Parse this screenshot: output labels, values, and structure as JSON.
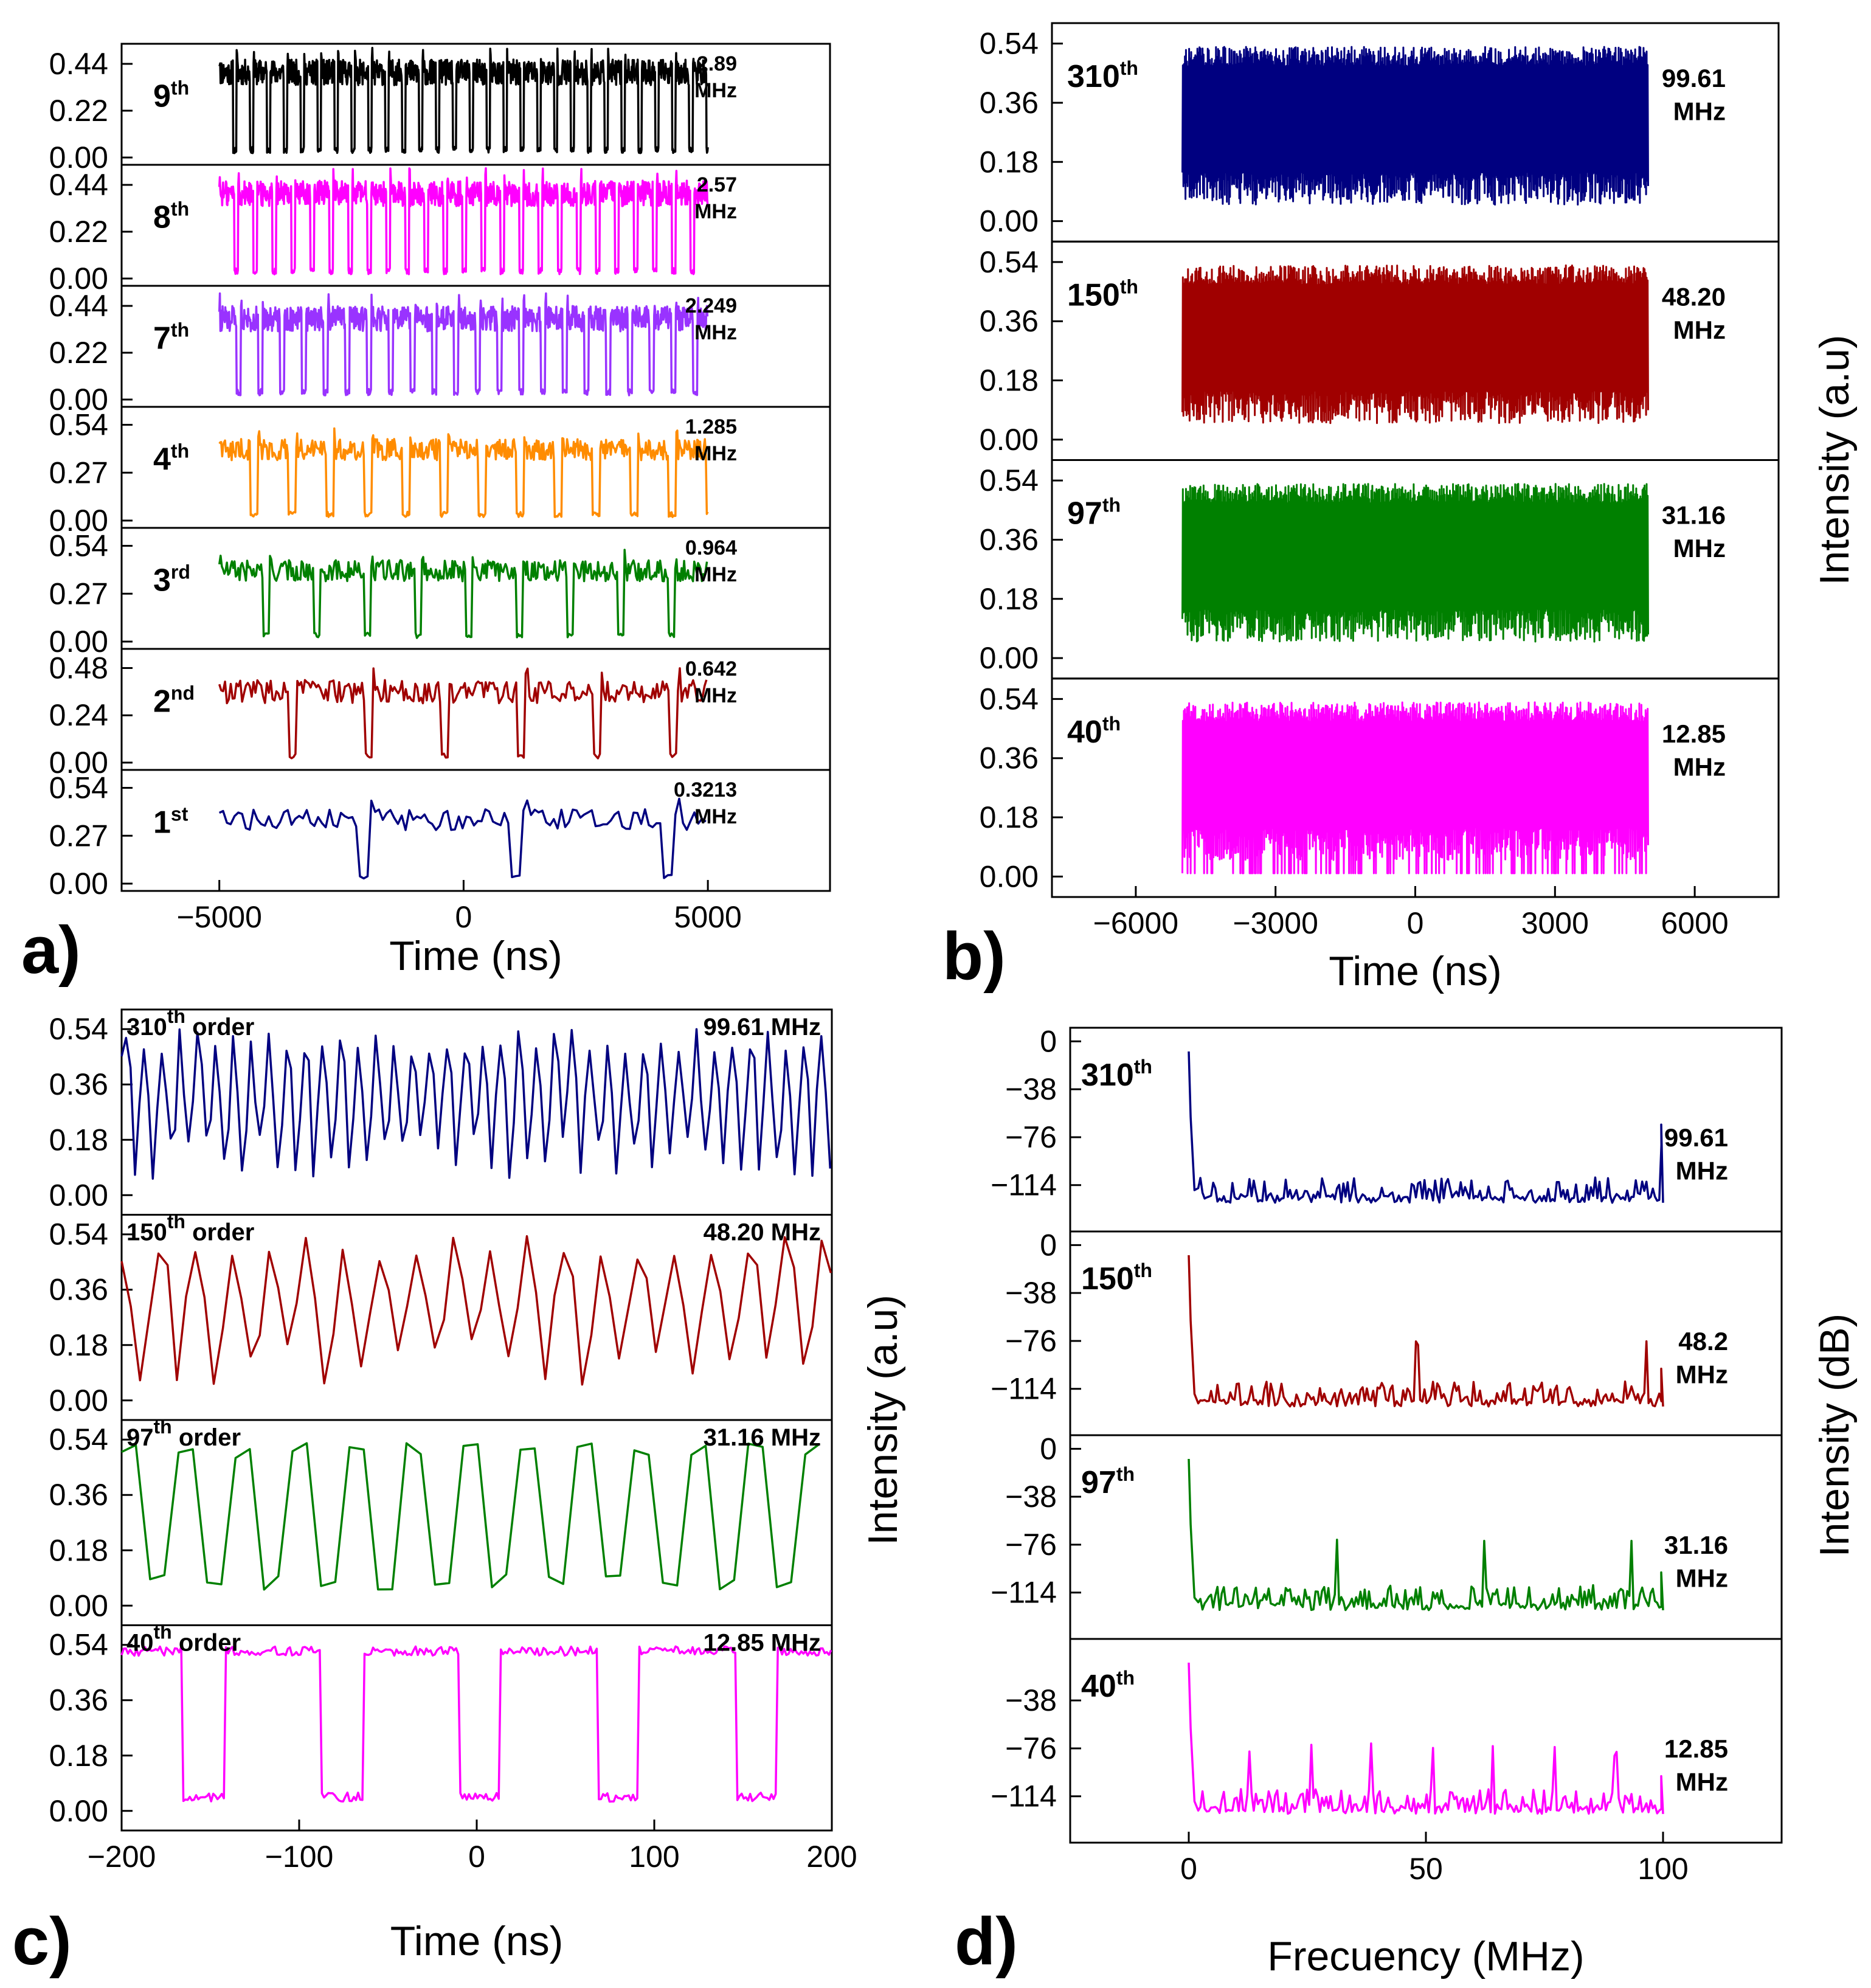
{
  "chart_data": [
    {
      "panel": "a",
      "type": "line",
      "xlabel": "Time (ns)",
      "ylabel": "",
      "xlim": [
        -7000,
        7500
      ],
      "xticks": [
        -5000,
        0,
        5000
      ],
      "tick_labels": [
        "−5000",
        "0",
        "5000"
      ],
      "panel_label": "a)",
      "series": [
        {
          "name": "9th",
          "ord": "9",
          "ordsup": "th",
          "freq": "2.89",
          "unit": "MHz",
          "color": "#000000",
          "kind": "square",
          "period": 346,
          "duty": 0.8,
          "hi": 0.4,
          "lo": 0.02,
          "yticks": [
            "0.44",
            "0.22",
            "0.00"
          ],
          "ylim": [
            0,
            0.5
          ]
        },
        {
          "name": "8th",
          "ord": "8",
          "ordsup": "th",
          "freq": "2.57",
          "unit": "MHz",
          "color": "#ff00ff",
          "kind": "square",
          "period": 389,
          "duty": 0.8,
          "hi": 0.4,
          "lo": 0.02,
          "yticks": [
            "0.44",
            "0.22",
            "0.00"
          ],
          "ylim": [
            0,
            0.5
          ]
        },
        {
          "name": "7th",
          "ord": "7",
          "ordsup": "th",
          "freq": "2.249",
          "unit": "MHz",
          "color": "#9933ff",
          "kind": "square",
          "period": 445,
          "duty": 0.8,
          "hi": 0.38,
          "lo": 0.02,
          "yticks": [
            "0.44",
            "0.22",
            "0.00"
          ],
          "ylim": [
            0,
            0.5
          ]
        },
        {
          "name": "4th",
          "ord": "4",
          "ordsup": "th",
          "freq": "1.285",
          "unit": "MHz",
          "color": "#ff8c00",
          "kind": "square",
          "period": 778,
          "duty": 0.82,
          "hi": 0.4,
          "lo": 0.02,
          "yticks": [
            "0.54",
            "0.27",
            "0.00"
          ],
          "ylim": [
            0,
            0.6
          ]
        },
        {
          "name": "3rd",
          "ord": "3",
          "ordsup": "rd",
          "freq": "0.964",
          "unit": "MHz",
          "color": "#008000",
          "kind": "square",
          "period": 1037,
          "duty": 0.86,
          "hi": 0.4,
          "lo": 0.02,
          "yticks": [
            "0.54",
            "0.27",
            "0.00"
          ],
          "ylim": [
            0,
            0.6
          ]
        },
        {
          "name": "2nd",
          "ord": "2",
          "ordsup": "nd",
          "freq": "0.642",
          "unit": "MHz",
          "color": "#a00000",
          "kind": "square",
          "period": 1558,
          "duty": 0.9,
          "hi": 0.36,
          "lo": 0.02,
          "yticks": [
            "0.48",
            "0.24",
            "0.00"
          ],
          "ylim": [
            0,
            0.54
          ]
        },
        {
          "name": "1st",
          "ord": "1",
          "ordsup": "st",
          "freq": "0.3213",
          "unit": "MHz",
          "color": "#000080",
          "kind": "square",
          "period": 3112,
          "duty": 0.92,
          "hi": 0.36,
          "lo": 0.02,
          "yticks": [
            "0.54",
            "0.27",
            "0.00"
          ],
          "ylim": [
            0,
            0.6
          ]
        }
      ]
    },
    {
      "panel": "b",
      "type": "line",
      "xlabel": "Time (ns)",
      "ylabel": "Intensity (a.u)",
      "xlim": [
        -7800,
        7800
      ],
      "xticks": [
        -6000,
        -3000,
        0,
        3000,
        6000
      ],
      "tick_labels": [
        "−6000",
        "−3000",
        "0",
        "3000",
        "6000"
      ],
      "panel_label": "b)",
      "series": [
        {
          "name": "310th",
          "ord": "310",
          "ordsup": "th",
          "freq": "99.61",
          "unit": "MHz",
          "color": "#000080",
          "kind": "dense",
          "yticks": [
            "0.54",
            "0.36",
            "0.18",
            "0.00"
          ],
          "ylim": [
            -0.04,
            0.58
          ]
        },
        {
          "name": "150th",
          "ord": "150",
          "ordsup": "th",
          "freq": "48.20",
          "unit": "MHz",
          "color": "#a00000",
          "kind": "dense",
          "yticks": [
            "0.54",
            "0.36",
            "0.18",
            "0.00"
          ],
          "ylim": [
            -0.04,
            0.58
          ]
        },
        {
          "name": "97th",
          "ord": "97",
          "ordsup": "th",
          "freq": "31.16",
          "unit": "MHz",
          "color": "#008000",
          "kind": "dense",
          "yticks": [
            "0.54",
            "0.36",
            "0.18",
            "0.00"
          ],
          "ylim": [
            -0.04,
            0.58
          ]
        },
        {
          "name": "40th",
          "ord": "40",
          "ordsup": "th",
          "freq": "12.85",
          "unit": "MHz",
          "color": "#ff00ff",
          "kind": "dense",
          "yticks": [
            "0.54",
            "0.36",
            "0.18",
            "0.00"
          ],
          "ylim": [
            -0.04,
            0.58
          ]
        }
      ]
    },
    {
      "panel": "c",
      "type": "line",
      "xlabel": "Time (ns)",
      "ylabel": "Intensity (a.u)",
      "xlim": [
        -200,
        200
      ],
      "xticks": [
        -200,
        -100,
        0,
        100,
        200
      ],
      "tick_labels": [
        "−200",
        "−100",
        "0",
        "100",
        "200"
      ],
      "panel_label": "c)",
      "series": [
        {
          "name": "310th order",
          "ord": "310",
          "ordsup": "th",
          "ordword": " order",
          "freq": "99.61 MHz",
          "color": "#000080",
          "kind": "osc",
          "period": 10.04,
          "yticks": [
            "0.54",
            "0.36",
            "0.18",
            "0.00"
          ],
          "ylim": [
            -0.04,
            0.58
          ]
        },
        {
          "name": "150th order",
          "ord": "150",
          "ordsup": "th",
          "ordword": " order",
          "freq": "48.20 MHz",
          "color": "#a00000",
          "kind": "osc",
          "period": 20.75,
          "yticks": [
            "0.54",
            "0.36",
            "0.18",
            "0.00"
          ],
          "ylim": [
            -0.04,
            0.58
          ]
        },
        {
          "name": "97th order",
          "ord": "97",
          "ordsup": "th",
          "ordword": " order",
          "freq": "31.16 MHz",
          "color": "#008000",
          "kind": "osc",
          "period": 32.09,
          "yticks": [
            "0.54",
            "0.36",
            "0.18",
            "0.00"
          ],
          "ylim": [
            -0.04,
            0.58
          ]
        },
        {
          "name": "40th order",
          "ord": "40",
          "ordsup": "th",
          "ordword": " order",
          "freq": "12.85 MHz",
          "color": "#ff00ff",
          "kind": "square",
          "period": 77.8,
          "duty": 0.7,
          "hi": 0.52,
          "lo": 0.03,
          "yticks": [
            "0.54",
            "0.36",
            "0.18",
            "0.00"
          ],
          "ylim": [
            -0.04,
            0.58
          ]
        }
      ]
    },
    {
      "panel": "d",
      "type": "line",
      "xlabel": "Frecuency (MHz)",
      "ylabel": "Intensity (dB)",
      "xlim": [
        -25,
        125
      ],
      "xticks": [
        0,
        50,
        100
      ],
      "tick_labels": [
        "0",
        "50",
        "100"
      ],
      "panel_label": "d)",
      "series": [
        {
          "name": "310th",
          "ord": "310",
          "ordsup": "th",
          "freq": "99.61",
          "unit": "MHz",
          "color": "#000080",
          "kind": "spectrum",
          "fund": 99.61,
          "yticks": [
            "0",
            "−38",
            "−76",
            "−114"
          ],
          "ylim": [
            -145,
            5
          ]
        },
        {
          "name": "150th",
          "ord": "150",
          "ordsup": "th",
          "freq": "48.2",
          "unit": "MHz",
          "color": "#a00000",
          "kind": "spectrum",
          "fund": 48.2,
          "yticks": [
            "0",
            "−38",
            "−76",
            "−114"
          ],
          "ylim": [
            -145,
            5
          ]
        },
        {
          "name": "97th",
          "ord": "97",
          "ordsup": "th",
          "freq": "31.16",
          "unit": "MHz",
          "color": "#008000",
          "kind": "spectrum",
          "fund": 31.16,
          "yticks": [
            "0",
            "−38",
            "−76",
            "−114"
          ],
          "ylim": [
            -145,
            5
          ]
        },
        {
          "name": "40th",
          "ord": "40",
          "ordsup": "th",
          "freq": "12.85",
          "unit": "MHz",
          "color": "#ff00ff",
          "kind": "spectrum",
          "fund": 12.85,
          "yticks": [
            "",
            "−38",
            "−76",
            "−114"
          ],
          "ylim": [
            -145,
            5
          ]
        }
      ]
    }
  ]
}
